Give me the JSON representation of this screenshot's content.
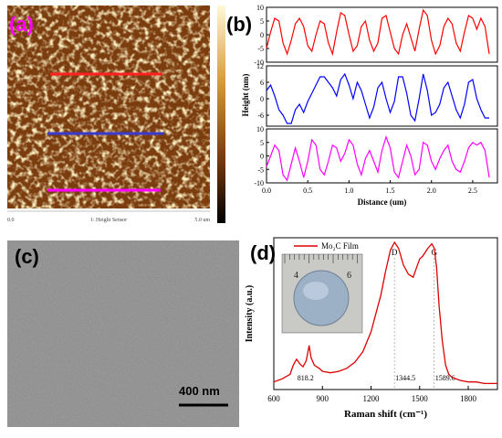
{
  "panels": {
    "a": {
      "label": "(a)",
      "scale_left": "0.0",
      "scale_center": "1: Height Sensor",
      "scale_right": "5.0 um",
      "line_colors": [
        "#ff2020",
        "#3a3ad0",
        "#ff00ff"
      ]
    },
    "b": {
      "label": "(b)"
    },
    "c": {
      "label": "(c)",
      "scalebar": "400 nm"
    },
    "d": {
      "label": "(d)",
      "legend": "Mo₂C Film",
      "inset_ruler": [
        "4",
        "6"
      ]
    }
  },
  "chart_data": [
    {
      "type": "line",
      "panel": "(b)",
      "xlabel": "Distance (um)",
      "ylabel": "Height (nm)",
      "xlim": [
        0,
        2.8
      ],
      "x_ticks": [
        "0.0",
        "0.5",
        "1.0",
        "1.5",
        "2.0",
        "2.5"
      ],
      "series": [
        {
          "color": "#ff0000",
          "yticks": [
            "10",
            "5",
            "0",
            "-5",
            "-10"
          ],
          "ylim": [
            -10,
            10
          ],
          "x": [
            0.0,
            0.05,
            0.1,
            0.15,
            0.2,
            0.25,
            0.3,
            0.35,
            0.4,
            0.45,
            0.5,
            0.55,
            0.6,
            0.65,
            0.7,
            0.75,
            0.8,
            0.85,
            0.9,
            0.95,
            1.0,
            1.05,
            1.1,
            1.15,
            1.2,
            1.25,
            1.3,
            1.35,
            1.4,
            1.45,
            1.5,
            1.55,
            1.6,
            1.65,
            1.7,
            1.75,
            1.8,
            1.85,
            1.9,
            1.95,
            2.0,
            2.05,
            2.1,
            2.15,
            2.2,
            2.25,
            2.3,
            2.35,
            2.4,
            2.45,
            2.5,
            2.55,
            2.6,
            2.65,
            2.7
          ],
          "y": [
            -5,
            1,
            6,
            5,
            -3,
            -7,
            -2,
            4,
            6,
            3,
            -4,
            -6,
            0,
            5,
            4,
            -3,
            -7,
            1,
            8,
            7,
            0,
            -6,
            -4,
            3,
            5,
            -2,
            -6,
            -3,
            6,
            7,
            1,
            -5,
            -7,
            0,
            4,
            -1,
            -6,
            2,
            9,
            7,
            -2,
            -7,
            -4,
            3,
            6,
            4,
            -3,
            -6,
            1,
            7,
            6,
            2,
            6,
            3,
            -7
          ]
        },
        {
          "color": "#0000ff",
          "yticks": [
            "12",
            "6",
            "0",
            "-6"
          ],
          "ylim": [
            -10,
            12
          ],
          "x": [
            0.0,
            0.05,
            0.1,
            0.15,
            0.2,
            0.25,
            0.3,
            0.35,
            0.4,
            0.45,
            0.5,
            0.55,
            0.6,
            0.65,
            0.7,
            0.75,
            0.8,
            0.85,
            0.9,
            0.95,
            1.0,
            1.05,
            1.1,
            1.15,
            1.2,
            1.25,
            1.3,
            1.35,
            1.4,
            1.45,
            1.5,
            1.55,
            1.6,
            1.65,
            1.7,
            1.75,
            1.8,
            1.85,
            1.9,
            1.95,
            2.0,
            2.05,
            2.1,
            2.15,
            2.2,
            2.25,
            2.3,
            2.35,
            2.4,
            2.45,
            2.5,
            2.55,
            2.6,
            2.65,
            2.7
          ],
          "y": [
            3,
            5,
            1,
            -4,
            -6,
            -9,
            -9,
            -4,
            -2,
            -5,
            -1,
            2,
            5,
            8,
            8,
            6,
            4,
            1,
            7,
            9,
            5,
            0,
            6,
            3,
            -2,
            -7,
            -3,
            4,
            6,
            0,
            -5,
            -1,
            8,
            8,
            2,
            -6,
            -8,
            0,
            9,
            3,
            -6,
            -5,
            -2,
            4,
            6,
            1,
            -4,
            -7,
            -2,
            6,
            7,
            0,
            -4,
            -7,
            -7
          ]
        },
        {
          "color": "#ff00ff",
          "yticks": [
            "10",
            "5",
            "0",
            "-5",
            "-10"
          ],
          "ylim": [
            -10,
            10
          ],
          "x": [
            0.0,
            0.05,
            0.1,
            0.15,
            0.2,
            0.25,
            0.3,
            0.35,
            0.4,
            0.45,
            0.5,
            0.55,
            0.6,
            0.65,
            0.7,
            0.75,
            0.8,
            0.85,
            0.9,
            0.95,
            1.0,
            1.05,
            1.1,
            1.15,
            1.2,
            1.25,
            1.3,
            1.35,
            1.4,
            1.45,
            1.5,
            1.55,
            1.6,
            1.65,
            1.7,
            1.75,
            1.8,
            1.85,
            1.9,
            1.95,
            2.0,
            2.05,
            2.1,
            2.15,
            2.2,
            2.25,
            2.3,
            2.35,
            2.4,
            2.45,
            2.5,
            2.55,
            2.6,
            2.65,
            2.7
          ],
          "y": [
            -4,
            0,
            4,
            2,
            -7,
            -9,
            -3,
            3,
            -2,
            -8,
            -2,
            6,
            4,
            -5,
            -7,
            -2,
            4,
            3,
            -2,
            1,
            6,
            4,
            -3,
            -7,
            -1,
            2,
            -2,
            -6,
            2,
            7,
            3,
            -6,
            -8,
            -2,
            4,
            0,
            -7,
            -5,
            5,
            4,
            -2,
            -5,
            -1,
            2,
            4,
            -2,
            -5,
            -6,
            -2,
            3,
            5,
            4,
            5,
            2,
            -8
          ]
        }
      ]
    },
    {
      "type": "line",
      "panel": "(d)",
      "xlabel": "Raman shift (cm⁻¹)",
      "ylabel": "Intensity (a.u.)",
      "xlim": [
        600,
        1980
      ],
      "x_ticks": [
        "600",
        "900",
        "1200",
        "1500",
        "1800"
      ],
      "ylim": [
        0,
        1
      ],
      "color": "#dd0000",
      "peaks": [
        {
          "label": "D",
          "x": 1344.5,
          "value_label": "1344.5"
        },
        {
          "label": "G",
          "x": 1589.6,
          "value_label": "1589.6"
        },
        {
          "x": 818.2,
          "value_label": "818.2"
        }
      ],
      "x": [
        600,
        650,
        700,
        720,
        740,
        760,
        780,
        800,
        818,
        830,
        850,
        880,
        900,
        950,
        1000,
        1050,
        1100,
        1150,
        1200,
        1230,
        1260,
        1290,
        1320,
        1345,
        1370,
        1400,
        1430,
        1460,
        1480,
        1500,
        1520,
        1550,
        1575,
        1590,
        1605,
        1620,
        1640,
        1660,
        1680,
        1700,
        1750,
        1800,
        1850,
        1900,
        1950,
        1980
      ],
      "y": [
        0.05,
        0.07,
        0.1,
        0.16,
        0.2,
        0.17,
        0.15,
        0.19,
        0.29,
        0.21,
        0.16,
        0.14,
        0.12,
        0.11,
        0.12,
        0.14,
        0.18,
        0.25,
        0.38,
        0.5,
        0.62,
        0.78,
        0.92,
        0.97,
        0.93,
        0.82,
        0.76,
        0.74,
        0.8,
        0.86,
        0.88,
        0.93,
        0.96,
        0.93,
        0.8,
        0.55,
        0.32,
        0.16,
        0.1,
        0.08,
        0.06,
        0.05,
        0.05,
        0.04,
        0.04,
        0.04
      ]
    }
  ]
}
